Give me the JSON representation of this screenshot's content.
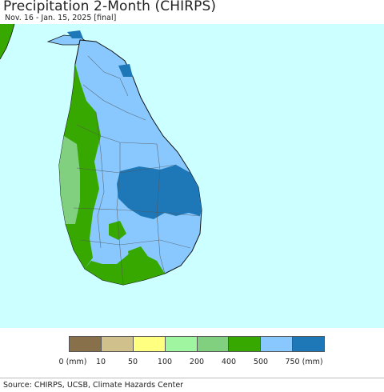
{
  "title": "Precipitation 2-Month (CHIRPS)",
  "subtitle": "Nov. 16 - Jan. 15, 2025 [final]",
  "legend": {
    "colors": [
      "#87704a",
      "#cfc08c",
      "#ffff80",
      "#a0f5a0",
      "#80d080",
      "#36a800",
      "#88c8ff",
      "#1e78b8"
    ],
    "tick_labels": [
      "0 (mm)",
      "10",
      "50",
      "100",
      "200",
      "400",
      "500",
      "750 (mm)"
    ]
  },
  "map": {
    "ocean_color": "#ccffff",
    "land_color": "#88c8ff",
    "region": "Sri Lanka"
  },
  "source": "Source: CHIRPS, UCSB, Climate Hazards Center"
}
